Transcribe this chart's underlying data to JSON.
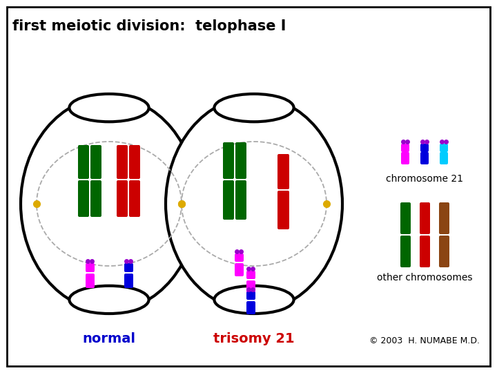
{
  "title": "first meiotic division:  telophase I",
  "title_fontsize": 15,
  "background_color": "#ffffff",
  "border_color": "#000000",
  "label_normal": "normal",
  "label_trisomy": "trisomy 21",
  "label_chr21": "chromosome 21",
  "label_other": "other chromosomes",
  "copyright": "© 2003  H. NUMABE M.D.",
  "normal_label_color": "#0000cc",
  "trisomy_label_color": "#cc0000",
  "green": "#006600",
  "red": "#cc0000",
  "magenta": "#ff00ff",
  "blue": "#0000dd",
  "cyan": "#00ccff",
  "purple": "#9900cc",
  "brown": "#8B4513",
  "yellow": "#ddaa00",
  "gray": "#aaaaaa"
}
